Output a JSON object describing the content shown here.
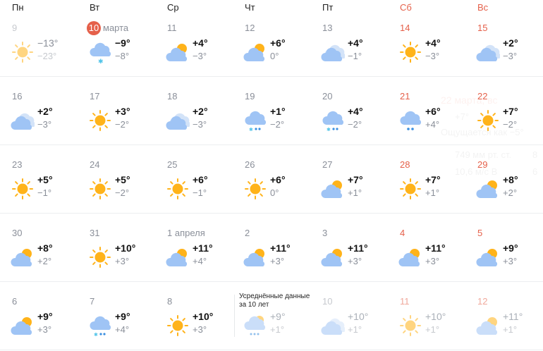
{
  "weekdays": [
    {
      "label": "Пн",
      "weekend": false
    },
    {
      "label": "Вт",
      "weekend": false
    },
    {
      "label": "Ср",
      "weekend": false
    },
    {
      "label": "Чт",
      "weekend": false
    },
    {
      "label": "Пт",
      "weekend": false
    },
    {
      "label": "Сб",
      "weekend": true
    },
    {
      "label": "Вс",
      "weekend": true
    }
  ],
  "colors": {
    "weekend": "#e5604a",
    "today_badge": "#e5604a",
    "sun": "#ffb31a",
    "cloud": "#9fc4f5"
  },
  "today": {
    "day": "10",
    "month": "марта"
  },
  "average_note": "Усреднённые данные за 10 лет",
  "tooltip": {
    "title": "22 марта, вс",
    "temp": "+7°",
    "feels": "Ощущается как −5°",
    "pressure": "749 мм рт. ст.",
    "humidity": "8",
    "wind": "10,6 м/с В",
    "extra": "6"
  },
  "rows": [
    [
      {
        "date": "9",
        "hi": "−13°",
        "lo": "−23°",
        "icon": "sun",
        "past": true
      },
      {
        "date": "10",
        "today": true,
        "hi": "−9°",
        "lo": "−8°",
        "icon": "snow"
      },
      {
        "date": "11",
        "hi": "+4°",
        "lo": "−3°",
        "icon": "partly-cloudy"
      },
      {
        "date": "12",
        "hi": "+6°",
        "lo": "0°",
        "icon": "partly-cloudy"
      },
      {
        "date": "13",
        "hi": "+4°",
        "lo": "−1°",
        "icon": "overcast"
      },
      {
        "date": "14",
        "hi": "+4°",
        "lo": "−3°",
        "icon": "sun",
        "weekend": true
      },
      {
        "date": "15",
        "hi": "+2°",
        "lo": "−3°",
        "icon": "overcast",
        "weekend": true
      }
    ],
    [
      {
        "date": "16",
        "hi": "+2°",
        "lo": "−3°",
        "icon": "overcast"
      },
      {
        "date": "17",
        "hi": "+3°",
        "lo": "−2°",
        "icon": "sun"
      },
      {
        "date": "18",
        "hi": "+2°",
        "lo": "−3°",
        "icon": "overcast"
      },
      {
        "date": "19",
        "hi": "+1°",
        "lo": "−2°",
        "icon": "sleet"
      },
      {
        "date": "20",
        "hi": "+4°",
        "lo": "−2°",
        "icon": "sleet"
      },
      {
        "date": "21",
        "hi": "+6°",
        "lo": "+4°",
        "icon": "rain",
        "weekend": true
      },
      {
        "date": "22",
        "hi": "+7°",
        "lo": "−2°",
        "icon": "sun",
        "weekend": true
      }
    ],
    [
      {
        "date": "23",
        "hi": "+5°",
        "lo": "−1°",
        "icon": "sun"
      },
      {
        "date": "24",
        "hi": "+5°",
        "lo": "−2°",
        "icon": "sun"
      },
      {
        "date": "25",
        "hi": "+6°",
        "lo": "−1°",
        "icon": "sun"
      },
      {
        "date": "26",
        "hi": "+6°",
        "lo": "0°",
        "icon": "sun"
      },
      {
        "date": "27",
        "hi": "+7°",
        "lo": "+1°",
        "icon": "partly-cloudy"
      },
      {
        "date": "28",
        "hi": "+7°",
        "lo": "+1°",
        "icon": "sun",
        "weekend": true
      },
      {
        "date": "29",
        "hi": "+8°",
        "lo": "+2°",
        "icon": "partly-cloudy",
        "weekend": true
      }
    ],
    [
      {
        "date": "30",
        "hi": "+8°",
        "lo": "+2°",
        "icon": "partly-cloudy"
      },
      {
        "date": "31",
        "hi": "+10°",
        "lo": "+3°",
        "icon": "sun"
      },
      {
        "date": "1 апреля",
        "hi": "+11°",
        "lo": "+4°",
        "icon": "partly-cloudy"
      },
      {
        "date": "2",
        "hi": "+11°",
        "lo": "+3°",
        "icon": "partly-cloudy"
      },
      {
        "date": "3",
        "hi": "+11°",
        "lo": "+3°",
        "icon": "partly-cloudy"
      },
      {
        "date": "4",
        "hi": "+11°",
        "lo": "+3°",
        "icon": "partly-cloudy",
        "weekend": true
      },
      {
        "date": "5",
        "hi": "+9°",
        "lo": "+3°",
        "icon": "partly-cloudy",
        "weekend": true
      }
    ],
    [
      {
        "date": "6",
        "hi": "+9°",
        "lo": "+3°",
        "icon": "partly-cloudy"
      },
      {
        "date": "7",
        "hi": "+9°",
        "lo": "+4°",
        "icon": "sleet"
      },
      {
        "date": "8",
        "hi": "+10°",
        "lo": "+3°",
        "icon": "sun"
      },
      {
        "date": "",
        "hi": "+9°",
        "lo": "+1°",
        "icon": "partly-sleet",
        "avg": true,
        "note": true
      },
      {
        "date": "10",
        "hi": "+10°",
        "lo": "+1°",
        "icon": "overcast",
        "avg": true
      },
      {
        "date": "11",
        "hi": "+10°",
        "lo": "+1°",
        "icon": "sun",
        "avg": true,
        "weekend": true
      },
      {
        "date": "12",
        "hi": "+11°",
        "lo": "+1°",
        "icon": "partly-cloudy",
        "avg": true,
        "weekend": true
      }
    ]
  ]
}
